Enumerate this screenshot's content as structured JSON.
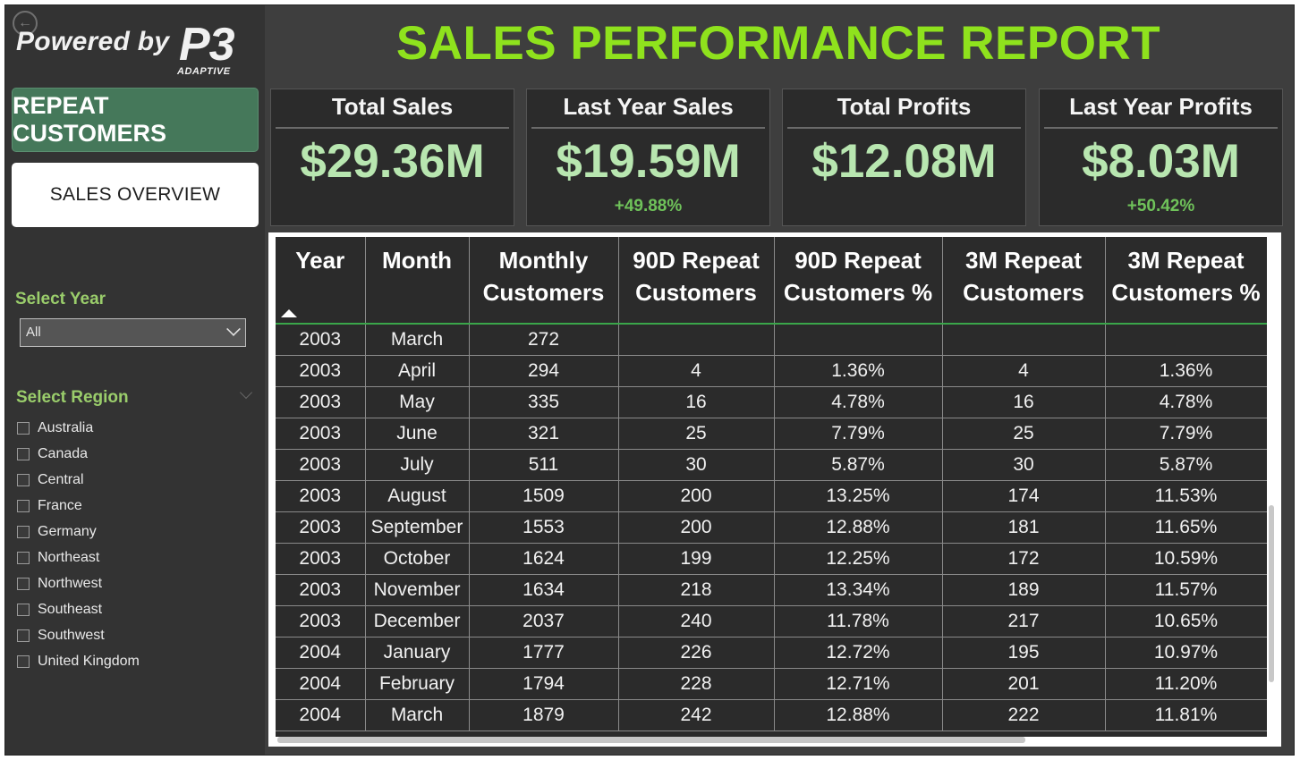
{
  "sidebar": {
    "back_icon": "back-arrow-icon",
    "logo": {
      "powered_by": "Powered by",
      "brand": "P3",
      "tagline": "ADAPTIVE"
    },
    "nav": {
      "repeat_customers": "REPEAT CUSTOMERS",
      "sales_overview": "SALES OVERVIEW"
    },
    "year_filter": {
      "label": "Select Year",
      "value": "All"
    },
    "region_filter": {
      "label": "Select Region",
      "items": [
        "Australia",
        "Canada",
        "Central",
        "France",
        "Germany",
        "Northeast",
        "Northwest",
        "Southeast",
        "Southwest",
        "United Kingdom"
      ]
    }
  },
  "title": "SALES PERFORMANCE REPORT",
  "kpis": [
    {
      "label": "Total Sales",
      "value": "$29.36M",
      "change": ""
    },
    {
      "label": "Last Year Sales",
      "value": "$19.59M",
      "change": "+49.88%"
    },
    {
      "label": "Total Profits",
      "value": "$12.08M",
      "change": ""
    },
    {
      "label": "Last Year Profits",
      "value": "$8.03M",
      "change": "+50.42%"
    }
  ],
  "table": {
    "headers": [
      [
        "Year"
      ],
      [
        "Month"
      ],
      [
        "Monthly",
        "Customers"
      ],
      [
        "90D Repeat",
        "Customers"
      ],
      [
        "90D Repeat",
        "Customers %"
      ],
      [
        "3M Repeat",
        "Customers"
      ],
      [
        "3M Repeat",
        "Customers %"
      ]
    ],
    "rows": [
      [
        "2003",
        "March",
        "272",
        "",
        "",
        "",
        ""
      ],
      [
        "2003",
        "April",
        "294",
        "4",
        "1.36%",
        "4",
        "1.36%"
      ],
      [
        "2003",
        "May",
        "335",
        "16",
        "4.78%",
        "16",
        "4.78%"
      ],
      [
        "2003",
        "June",
        "321",
        "25",
        "7.79%",
        "25",
        "7.79%"
      ],
      [
        "2003",
        "July",
        "511",
        "30",
        "5.87%",
        "30",
        "5.87%"
      ],
      [
        "2003",
        "August",
        "1509",
        "200",
        "13.25%",
        "174",
        "11.53%"
      ],
      [
        "2003",
        "September",
        "1553",
        "200",
        "12.88%",
        "181",
        "11.65%"
      ],
      [
        "2003",
        "October",
        "1624",
        "199",
        "12.25%",
        "172",
        "10.59%"
      ],
      [
        "2003",
        "November",
        "1634",
        "218",
        "13.34%",
        "189",
        "11.57%"
      ],
      [
        "2003",
        "December",
        "2037",
        "240",
        "11.78%",
        "217",
        "10.65%"
      ],
      [
        "2004",
        "January",
        "1777",
        "226",
        "12.72%",
        "195",
        "10.97%"
      ],
      [
        "2004",
        "February",
        "1794",
        "228",
        "12.71%",
        "201",
        "11.20%"
      ],
      [
        "2004",
        "March",
        "1879",
        "242",
        "12.88%",
        "222",
        "11.81%"
      ]
    ]
  },
  "colors": {
    "accent_green": "#8fe21d",
    "kpi_value": "#b8e6b0",
    "button_green": "#45785a"
  }
}
